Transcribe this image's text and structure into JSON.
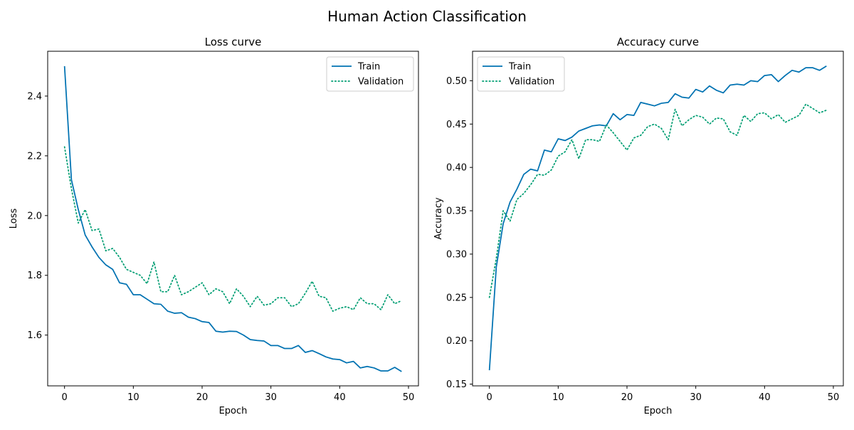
{
  "figure": {
    "suptitle": "Human Action Classification"
  },
  "chart_data": [
    {
      "type": "line",
      "title": "Loss curve",
      "xlabel": "Epoch",
      "ylabel": "Loss",
      "xlim": [
        -2.45,
        51.45
      ],
      "ylim": [
        1.43,
        2.55
      ],
      "xticks": [
        0,
        10,
        20,
        30,
        40,
        50
      ],
      "yticks": [
        1.6,
        1.8,
        2.0,
        2.2,
        2.4
      ],
      "ytick_labels": [
        "1.6",
        "1.8",
        "2.0",
        "2.2",
        "2.4"
      ],
      "grid": false,
      "legend_position": "top-right",
      "x": [
        0,
        1,
        2,
        3,
        4,
        5,
        6,
        7,
        8,
        9,
        10,
        11,
        12,
        13,
        14,
        15,
        16,
        17,
        18,
        19,
        20,
        21,
        22,
        23,
        24,
        25,
        26,
        27,
        28,
        29,
        30,
        31,
        32,
        33,
        34,
        35,
        36,
        37,
        38,
        39,
        40,
        41,
        42,
        43,
        44,
        45,
        46,
        47,
        48,
        49
      ],
      "series": [
        {
          "name": "Train",
          "color": "#0072b2",
          "style": "solid",
          "values": [
            2.5,
            2.12,
            2.02,
            1.935,
            1.895,
            1.86,
            1.835,
            1.82,
            1.775,
            1.77,
            1.735,
            1.735,
            1.72,
            1.705,
            1.703,
            1.68,
            1.673,
            1.675,
            1.66,
            1.655,
            1.645,
            1.642,
            1.613,
            1.61,
            1.613,
            1.612,
            1.6,
            1.585,
            1.582,
            1.58,
            1.565,
            1.565,
            1.555,
            1.555,
            1.565,
            1.542,
            1.548,
            1.538,
            1.527,
            1.52,
            1.518,
            1.507,
            1.512,
            1.49,
            1.495,
            1.49,
            1.48,
            1.48,
            1.492,
            1.478
          ]
        },
        {
          "name": "Validation",
          "color": "#009e73",
          "style": "dotted",
          "values": [
            2.23,
            2.09,
            1.975,
            2.02,
            1.95,
            1.955,
            1.882,
            1.89,
            1.86,
            1.82,
            1.81,
            1.8,
            1.772,
            1.845,
            1.745,
            1.745,
            1.8,
            1.735,
            1.745,
            1.76,
            1.775,
            1.735,
            1.755,
            1.745,
            1.705,
            1.755,
            1.73,
            1.695,
            1.73,
            1.7,
            1.705,
            1.725,
            1.725,
            1.695,
            1.705,
            1.74,
            1.78,
            1.73,
            1.725,
            1.68,
            1.69,
            1.695,
            1.685,
            1.725,
            1.705,
            1.705,
            1.685,
            1.735,
            1.705,
            1.715
          ]
        }
      ]
    },
    {
      "type": "line",
      "title": "Accuracy curve",
      "xlabel": "Epoch",
      "ylabel": "Accuracy",
      "xlim": [
        -2.45,
        51.45
      ],
      "ylim": [
        0.148,
        0.534
      ],
      "xticks": [
        0,
        10,
        20,
        30,
        40,
        50
      ],
      "yticks": [
        0.15,
        0.2,
        0.25,
        0.3,
        0.35,
        0.4,
        0.45,
        0.5
      ],
      "ytick_labels": [
        "0.15",
        "0.20",
        "0.25",
        "0.30",
        "0.35",
        "0.40",
        "0.45",
        "0.50"
      ],
      "grid": false,
      "legend_position": "top-left",
      "x": [
        0,
        1,
        2,
        3,
        4,
        5,
        6,
        7,
        8,
        9,
        10,
        11,
        12,
        13,
        14,
        15,
        16,
        17,
        18,
        19,
        20,
        21,
        22,
        23,
        24,
        25,
        26,
        27,
        28,
        29,
        30,
        31,
        32,
        33,
        34,
        35,
        36,
        37,
        38,
        39,
        40,
        41,
        42,
        43,
        44,
        45,
        46,
        47,
        48,
        49
      ],
      "series": [
        {
          "name": "Train",
          "color": "#0072b2",
          "style": "solid",
          "values": [
            0.166,
            0.285,
            0.335,
            0.36,
            0.375,
            0.392,
            0.398,
            0.396,
            0.42,
            0.418,
            0.433,
            0.431,
            0.435,
            0.442,
            0.445,
            0.448,
            0.449,
            0.448,
            0.462,
            0.455,
            0.461,
            0.46,
            0.475,
            0.473,
            0.471,
            0.474,
            0.475,
            0.485,
            0.481,
            0.48,
            0.49,
            0.487,
            0.494,
            0.489,
            0.486,
            0.495,
            0.496,
            0.495,
            0.5,
            0.499,
            0.506,
            0.507,
            0.499,
            0.506,
            0.512,
            0.51,
            0.515,
            0.515,
            0.512,
            0.517
          ]
        },
        {
          "name": "Validation",
          "color": "#009e73",
          "style": "dotted",
          "values": [
            0.25,
            0.295,
            0.35,
            0.338,
            0.363,
            0.37,
            0.38,
            0.392,
            0.391,
            0.397,
            0.413,
            0.418,
            0.432,
            0.41,
            0.432,
            0.432,
            0.43,
            0.449,
            0.44,
            0.43,
            0.42,
            0.434,
            0.437,
            0.447,
            0.45,
            0.445,
            0.432,
            0.467,
            0.448,
            0.455,
            0.46,
            0.458,
            0.45,
            0.457,
            0.456,
            0.441,
            0.437,
            0.46,
            0.453,
            0.462,
            0.463,
            0.456,
            0.461,
            0.452,
            0.456,
            0.46,
            0.473,
            0.468,
            0.463,
            0.466
          ]
        }
      ]
    }
  ]
}
